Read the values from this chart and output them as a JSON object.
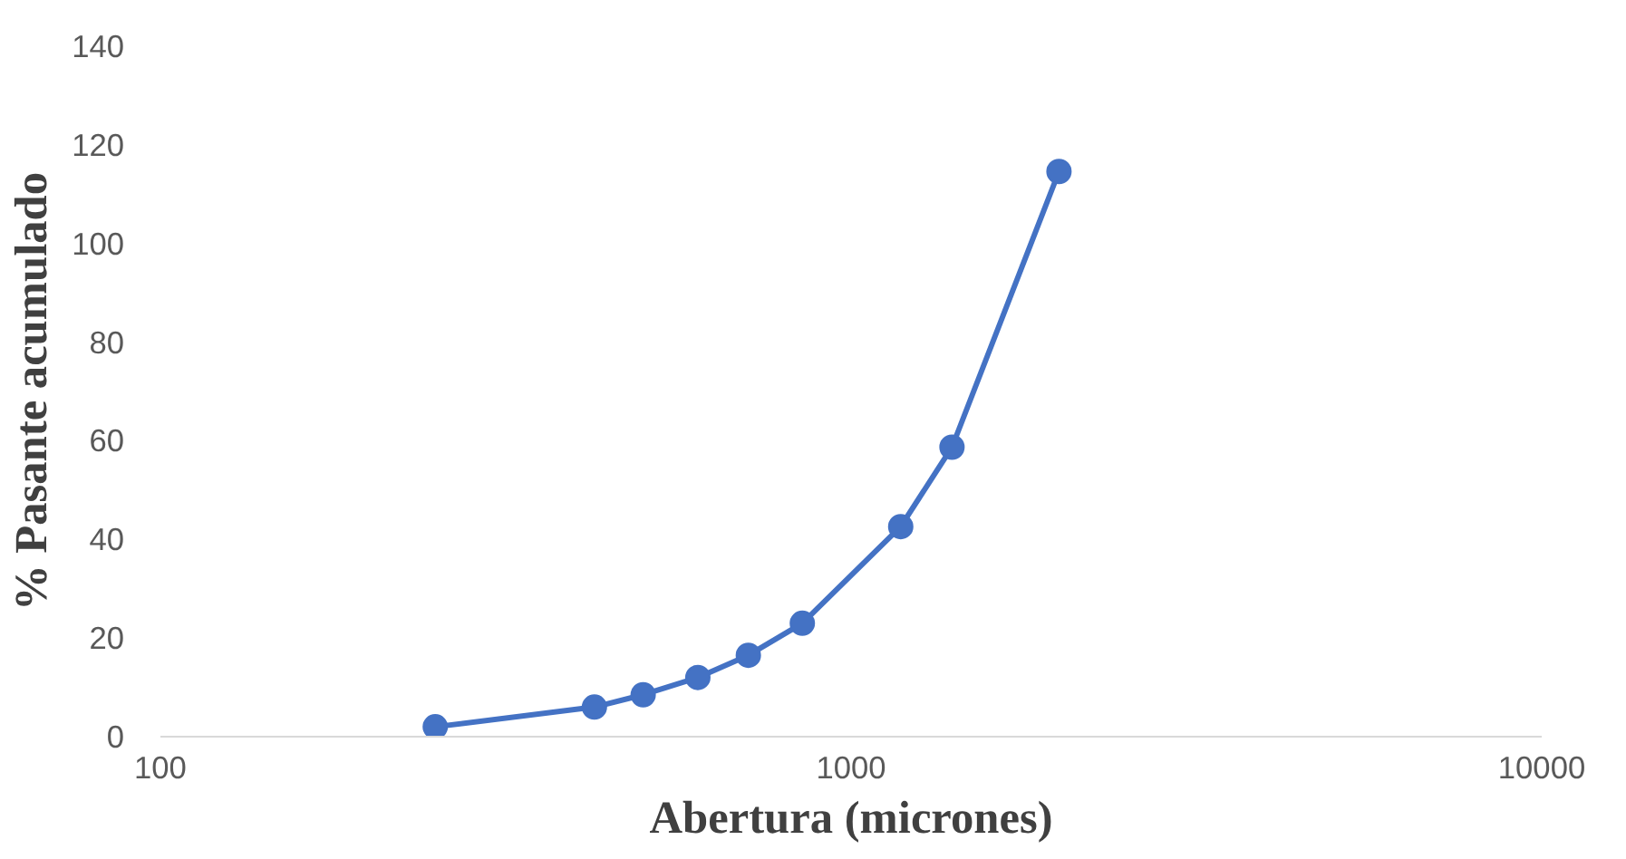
{
  "chart_data": {
    "type": "line",
    "xlabel": "Abertura (micrones)",
    "ylabel": "% Pasante acumulado",
    "x": [
      250,
      425,
      500,
      600,
      710,
      850,
      1180,
      1400,
      2000
    ],
    "series": [
      {
        "color": "#4472c4",
        "values": [
          2,
          6,
          8.5,
          12,
          16.5,
          23,
          42.6,
          58.7,
          114.6
        ]
      }
    ],
    "log": "x",
    "xlim": [
      100,
      10000
    ],
    "xticks": [
      100,
      1000,
      10000
    ],
    "ylim": [
      0,
      140
    ],
    "yticks": [
      0,
      20,
      40,
      60,
      80,
      100,
      120,
      140
    ],
    "marker": "circle",
    "line_style": "solid",
    "grid": false
  }
}
